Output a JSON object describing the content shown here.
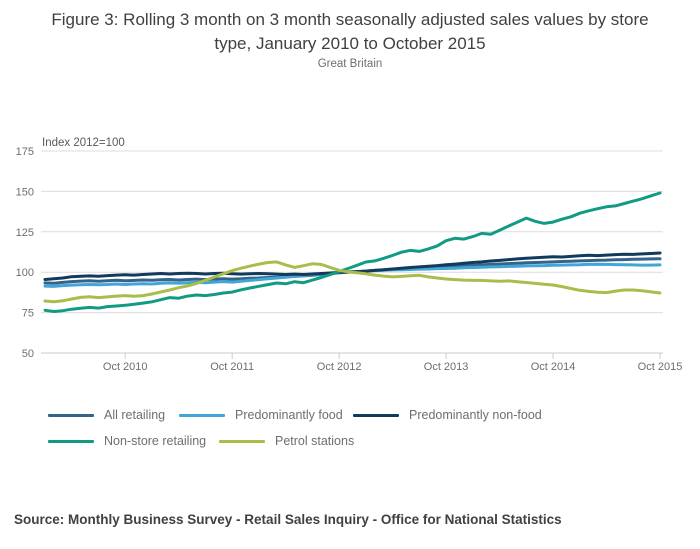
{
  "title": "Figure 3: Rolling 3 month on 3 month seasonally adjusted sales values by store type, January 2010 to October 2015",
  "subtitle": "Great Britain",
  "source": "Source: Monthly Business Survey - Retail Sales Inquiry - Office for National Statistics",
  "chart_data": {
    "type": "line",
    "title": "Figure 3: Rolling 3 month on 3 month seasonally adjusted sales values by store type, January 2010 to October 2015",
    "subtitle": "Great Britain",
    "y_axis_label": "Index 2012=100",
    "ylim": [
      50,
      175
    ],
    "yticks": [
      50,
      75,
      100,
      125,
      150,
      175
    ],
    "grid": "horizontal",
    "legend_position": "bottom",
    "frequency": "monthly",
    "x_start": "Jan 2010",
    "x_end": "Oct 2015",
    "x_ticks": [
      {
        "label": "Oct 2010",
        "month_index": 9
      },
      {
        "label": "Oct 2011",
        "month_index": 21
      },
      {
        "label": "Oct 2012",
        "month_index": 33
      },
      {
        "label": "Oct 2013",
        "month_index": 45
      },
      {
        "label": "Oct 2014",
        "month_index": 57
      },
      {
        "label": "Oct 2015",
        "month_index": 69
      }
    ],
    "colors": {
      "grid": "#dcdcdc",
      "axis": "#c5ced6",
      "text": "#6d6e71"
    },
    "series": [
      {
        "name": "All retailing",
        "color": "#33658b",
        "values": [
          93.4,
          93.2,
          93.7,
          94.2,
          94.5,
          94.7,
          94.4,
          94.7,
          95.0,
          94.7,
          94.9,
          95.2,
          95.0,
          95.3,
          95.5,
          95.2,
          95.5,
          95.7,
          95.4,
          95.7,
          95.9,
          95.7,
          95.9,
          96.2,
          96.4,
          96.7,
          96.9,
          97.2,
          97.4,
          97.7,
          98.1,
          98.6,
          99.1,
          99.6,
          100.0,
          100.3,
          100.7,
          101.1,
          101.4,
          101.8,
          102.1,
          102.4,
          102.7,
          102.9,
          103.2,
          103.4,
          103.7,
          103.9,
          104.2,
          104.5,
          104.8,
          105.1,
          105.3,
          105.6,
          105.8,
          106.0,
          106.2,
          106.4,
          106.6,
          106.8,
          107.0,
          107.2,
          107.4,
          107.5,
          107.7,
          107.8,
          108.0,
          108.1,
          108.2,
          108.3
        ]
      },
      {
        "name": "Predominantly food",
        "color": "#41a5d8",
        "values": [
          91.4,
          91.2,
          91.7,
          92.0,
          92.2,
          92.4,
          92.2,
          92.4,
          92.7,
          92.4,
          92.7,
          92.9,
          92.7,
          93.2,
          93.4,
          93.2,
          93.5,
          93.7,
          93.5,
          93.9,
          94.2,
          93.9,
          94.4,
          94.9,
          95.4,
          95.9,
          96.4,
          96.9,
          97.4,
          97.9,
          98.4,
          98.9,
          99.4,
          99.8,
          100.1,
          100.4,
          100.7,
          101.0,
          101.2,
          101.4,
          101.5,
          101.7,
          101.9,
          102.0,
          102.2,
          102.3,
          102.5,
          102.7,
          102.9,
          103.1,
          103.3,
          103.4,
          103.6,
          103.7,
          103.9,
          104.0,
          104.1,
          104.3,
          104.4,
          104.5,
          104.6,
          104.8,
          104.9,
          104.8,
          104.7,
          104.6,
          104.5,
          104.4,
          104.4,
          104.5
        ]
      },
      {
        "name": "Predominantly non-food",
        "color": "#123a5c",
        "values": [
          95.5,
          95.9,
          96.4,
          97.2,
          97.5,
          97.7,
          97.5,
          97.9,
          98.2,
          98.4,
          98.2,
          98.6,
          98.9,
          99.2,
          98.9,
          99.2,
          99.4,
          99.2,
          98.9,
          99.2,
          99.4,
          99.0,
          98.8,
          99.0,
          99.2,
          99.0,
          98.8,
          98.6,
          98.8,
          98.6,
          98.9,
          99.2,
          99.5,
          99.9,
          100.2,
          100.4,
          100.7,
          101.1,
          101.5,
          102.0,
          102.4,
          102.9,
          103.3,
          103.7,
          104.1,
          104.6,
          105.0,
          105.5,
          106.0,
          106.4,
          106.9,
          107.3,
          107.8,
          108.2,
          108.6,
          108.9,
          109.3,
          109.6,
          109.4,
          109.8,
          110.2,
          110.5,
          110.3,
          110.6,
          110.9,
          111.1,
          111.0,
          111.3,
          111.6,
          111.9
        ]
      },
      {
        "name": "Non-store retailing",
        "color": "#129b83",
        "values": [
          76.4,
          75.7,
          76.2,
          77.1,
          77.7,
          78.2,
          77.8,
          78.7,
          79.1,
          79.5,
          80.2,
          80.9,
          81.7,
          83.0,
          84.3,
          83.9,
          85.2,
          85.9,
          85.5,
          86.2,
          87.1,
          87.7,
          89.1,
          90.2,
          91.3,
          92.3,
          93.3,
          92.8,
          94.1,
          93.5,
          95.1,
          96.7,
          98.5,
          100.4,
          102.3,
          104.3,
          106.3,
          107.0,
          108.6,
          110.4,
          112.4,
          113.5,
          112.9,
          114.4,
          116.3,
          119.5,
          121.0,
          120.5,
          122.0,
          124.0,
          123.5,
          126.0,
          128.5,
          131.0,
          133.5,
          131.5,
          130.2,
          131.0,
          132.8,
          134.3,
          136.5,
          138.0,
          139.3,
          140.5,
          141.0,
          142.5,
          144.0,
          145.5,
          147.3,
          149.0
        ]
      },
      {
        "name": "Petrol stations",
        "color": "#a9bd4a",
        "values": [
          82.2,
          81.7,
          82.3,
          83.4,
          84.4,
          84.8,
          84.3,
          84.7,
          85.2,
          85.5,
          85.1,
          85.5,
          86.5,
          87.8,
          89.0,
          90.4,
          91.5,
          93.0,
          95.0,
          97.0,
          99.0,
          101.0,
          102.5,
          103.8,
          105.0,
          106.0,
          106.4,
          104.5,
          103.0,
          104.0,
          105.2,
          104.8,
          103.0,
          101.2,
          100.2,
          99.6,
          99.0,
          98.2,
          97.6,
          97.1,
          97.4,
          97.8,
          98.1,
          97.1,
          96.4,
          95.8,
          95.4,
          95.1,
          94.9,
          94.9,
          94.6,
          94.4,
          94.6,
          94.1,
          93.6,
          93.1,
          92.6,
          92.1,
          91.1,
          89.9,
          88.8,
          88.1,
          87.6,
          87.4,
          88.3,
          89.0,
          89.0,
          88.5,
          87.8,
          87.1
        ]
      }
    ]
  }
}
